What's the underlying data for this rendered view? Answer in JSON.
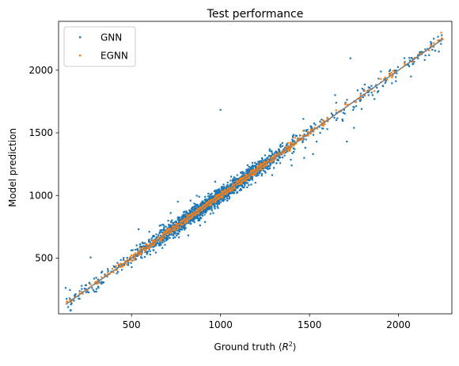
{
  "chart_data": {
    "type": "scatter",
    "title": "Test performance",
    "xlabel": "Ground truth (R^2)",
    "xlabel_parts": {
      "prefix": "Ground truth ",
      "open": "⟨",
      "var": "R",
      "sup": "2",
      "close": "⟩"
    },
    "ylabel": "Model prediction",
    "xlim": [
      90,
      2300
    ],
    "ylim": [
      55,
      2390
    ],
    "xticks": [
      500,
      1000,
      1500,
      2000
    ],
    "yticks": [
      500,
      1000,
      1500,
      2000
    ],
    "xtick_labels": [
      "500",
      "1000",
      "1500",
      "2000"
    ],
    "ytick_labels": [
      "500",
      "1000",
      "1500",
      "2000"
    ],
    "grid": false,
    "legend_position": "upper-left",
    "series": [
      {
        "name": "GNN",
        "color": "#1f77b4",
        "cluster": {
          "count": 2200,
          "x_range": [
            130,
            2250
          ],
          "center": 960,
          "spread": 190,
          "noise_sd": 30
        },
        "points": [
          [
            130,
            262
          ],
          [
            180,
            200
          ],
          [
            270,
            505
          ],
          [
            1000,
            1683
          ],
          [
            1730,
            2095
          ],
          [
            1750,
            1540
          ],
          [
            1710,
            1430
          ],
          [
            2070,
            1950
          ],
          [
            1990,
            1975
          ],
          [
            1470,
            1300
          ],
          [
            1520,
            1330
          ],
          [
            1250,
            1190
          ],
          [
            1310,
            1350
          ],
          [
            1395,
            1285
          ],
          [
            1560,
            1500
          ],
          [
            1640,
            1620
          ],
          [
            1400,
            1240
          ],
          [
            880,
            990
          ],
          [
            760,
            950
          ],
          [
            600,
            710
          ],
          [
            720,
            860
          ],
          [
            640,
            660
          ],
          [
            540,
            730
          ],
          [
            970,
            1110
          ],
          [
            1120,
            1080
          ],
          [
            1300,
            1220
          ],
          [
            1180,
            1240
          ],
          [
            1060,
            1150
          ],
          [
            1150,
            1065
          ],
          [
            870,
            820
          ],
          [
            1480,
            1520
          ],
          [
            1540,
            1430
          ],
          [
            1600,
            1530
          ],
          [
            1600,
            1620
          ],
          [
            1690,
            1660
          ]
        ]
      },
      {
        "name": "EGNN",
        "color": "#ff7f0e",
        "cluster": {
          "count": 900,
          "x_range": [
            130,
            2250
          ],
          "center": 960,
          "spread": 260,
          "noise_sd": 10
        },
        "points": [
          [
            2240,
            2300
          ],
          [
            2240,
            2245
          ],
          [
            1960,
            1980
          ],
          [
            1970,
            1995
          ],
          [
            1700,
            1730
          ],
          [
            1420,
            1460
          ],
          [
            1380,
            1420
          ],
          [
            270,
            290
          ],
          [
            300,
            310
          ],
          [
            450,
            440
          ],
          [
            540,
            535
          ]
        ]
      },
      {
        "name": "",
        "type": "line",
        "color": "#808080",
        "x": [
          130,
          2250
        ],
        "y": [
          130,
          2250
        ]
      }
    ]
  }
}
